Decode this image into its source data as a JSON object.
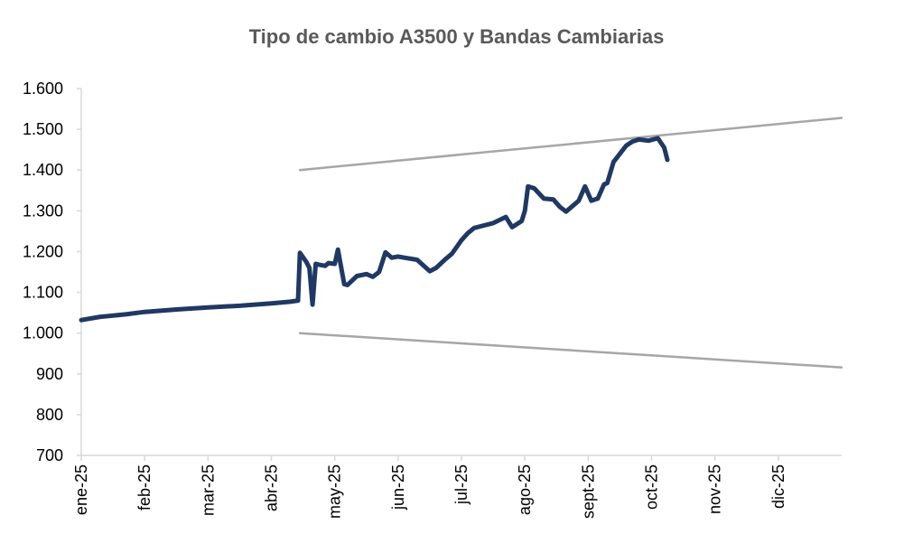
{
  "chart_data": {
    "type": "line",
    "title": "Tipo de cambio A3500 y Bandas Cambiarias",
    "xlabel": "",
    "ylabel": "",
    "ylim": [
      700,
      1600
    ],
    "yticks": [
      700,
      800,
      900,
      1000,
      1100,
      1200,
      1300,
      1400,
      1500,
      1600
    ],
    "ytick_labels": [
      "700",
      "800",
      "900",
      "1.000",
      "1.100",
      "1.200",
      "1.300",
      "1.400",
      "1.500",
      "1.600"
    ],
    "xticks": [
      "ene-25",
      "feb-25",
      "mar-25",
      "abr-25",
      "may-25",
      "jun-25",
      "jul-25",
      "ago-25",
      "sept-25",
      "oct-25",
      "nov-25",
      "dic-25"
    ],
    "x_range_months": [
      0,
      12
    ],
    "grid": false,
    "legend": "none",
    "colors": {
      "a3500": "#1F3864",
      "bands": "#A6A6A6",
      "axis": "#D9D9D9"
    },
    "series": [
      {
        "key": "a3500",
        "x": [
          0.0,
          0.3,
          0.7,
          1.0,
          1.5,
          2.0,
          2.5,
          3.0,
          3.3,
          3.42,
          3.45,
          3.55,
          3.6,
          3.65,
          3.7,
          3.75,
          3.85,
          3.9,
          4.0,
          4.05,
          4.15,
          4.2,
          4.35,
          4.5,
          4.6,
          4.7,
          4.8,
          4.9,
          5.0,
          5.1,
          5.3,
          5.5,
          5.6,
          5.75,
          5.85,
          6.0,
          6.1,
          6.2,
          6.3,
          6.5,
          6.7,
          6.8,
          6.95,
          7.0,
          7.05,
          7.15,
          7.3,
          7.45,
          7.55,
          7.65,
          7.8,
          7.85,
          7.95,
          8.05,
          8.15,
          8.25,
          8.3,
          8.4,
          8.5,
          8.6,
          8.65,
          8.7,
          8.8,
          8.95,
          9.1,
          9.2,
          9.25
        ],
        "values": [
          1032,
          1040,
          1046,
          1052,
          1058,
          1063,
          1067,
          1073,
          1077,
          1080,
          1197,
          1175,
          1160,
          1070,
          1170,
          1168,
          1165,
          1172,
          1170,
          1205,
          1120,
          1118,
          1140,
          1145,
          1138,
          1150,
          1198,
          1185,
          1188,
          1185,
          1180,
          1152,
          1160,
          1182,
          1195,
          1228,
          1245,
          1258,
          1262,
          1270,
          1285,
          1260,
          1275,
          1300,
          1360,
          1355,
          1330,
          1328,
          1310,
          1298,
          1318,
          1325,
          1360,
          1325,
          1330,
          1365,
          1368,
          1420,
          1440,
          1460,
          1465,
          1470,
          1475,
          1472,
          1478,
          1455,
          1425
        ]
      },
      {
        "key": "band_upper",
        "x": [
          3.45,
          12.0
        ],
        "values": [
          1400,
          1528
        ]
      },
      {
        "key": "band_lower",
        "x": [
          3.45,
          12.0
        ],
        "values": [
          1000,
          916
        ]
      }
    ]
  }
}
